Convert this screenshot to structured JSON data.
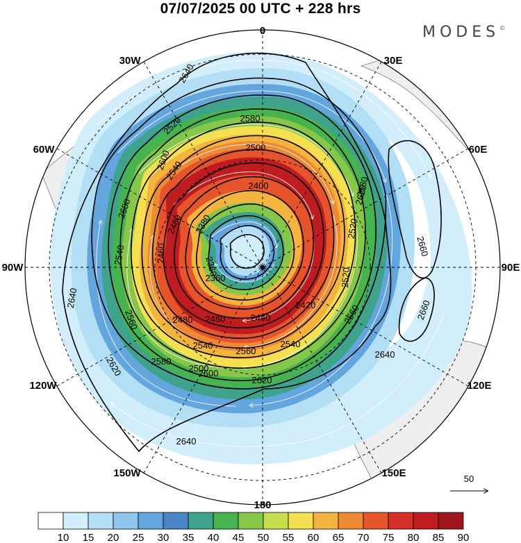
{
  "header": {
    "title": "07/07/2025  00 UTC  + 228 hrs",
    "brand": "MODES",
    "brand_mark": "©"
  },
  "map": {
    "projection": "polar stereographic (south pole)",
    "longitude_labels": {
      "top": "0",
      "top_left": "30W",
      "top_right": "30E",
      "upper_left": "60W",
      "upper_right": "60E",
      "left": "90W",
      "right": "90E",
      "lower_left": "120W",
      "lower_right": "120E",
      "bottom_left": "150W",
      "bottom_right": "150E",
      "bottom": "180"
    },
    "contour_labels": [
      "2640",
      "2640",
      "2640",
      "2640",
      "2620",
      "2620",
      "2620",
      "2600",
      "2600",
      "2600",
      "2580",
      "2580",
      "2560",
      "2560",
      "2540",
      "2540",
      "2540",
      "2520",
      "2520",
      "2500",
      "2500",
      "2480",
      "2480",
      "2460",
      "2460",
      "2440",
      "2420",
      "2400",
      "2380",
      "2360",
      "2360",
      "2660",
      "2660",
      "2540",
      "2520",
      "2560",
      "2580"
    ],
    "reference_vector_label": "50"
  },
  "colorbar": {
    "labels": [
      "10",
      "15",
      "20",
      "25",
      "30",
      "35",
      "40",
      "45",
      "50",
      "55",
      "60",
      "65",
      "70",
      "75",
      "80",
      "85",
      "90"
    ],
    "colors": [
      "#ffffff",
      "#d2eefb",
      "#b3dff6",
      "#8ec6ed",
      "#63a5dd",
      "#4a86c6",
      "#3fa38c",
      "#47b34f",
      "#86c649",
      "#c8dd4c",
      "#f5e052",
      "#f2b33f",
      "#ee8a33",
      "#e6542c",
      "#d62f27",
      "#be1c20",
      "#9e151b"
    ]
  }
}
